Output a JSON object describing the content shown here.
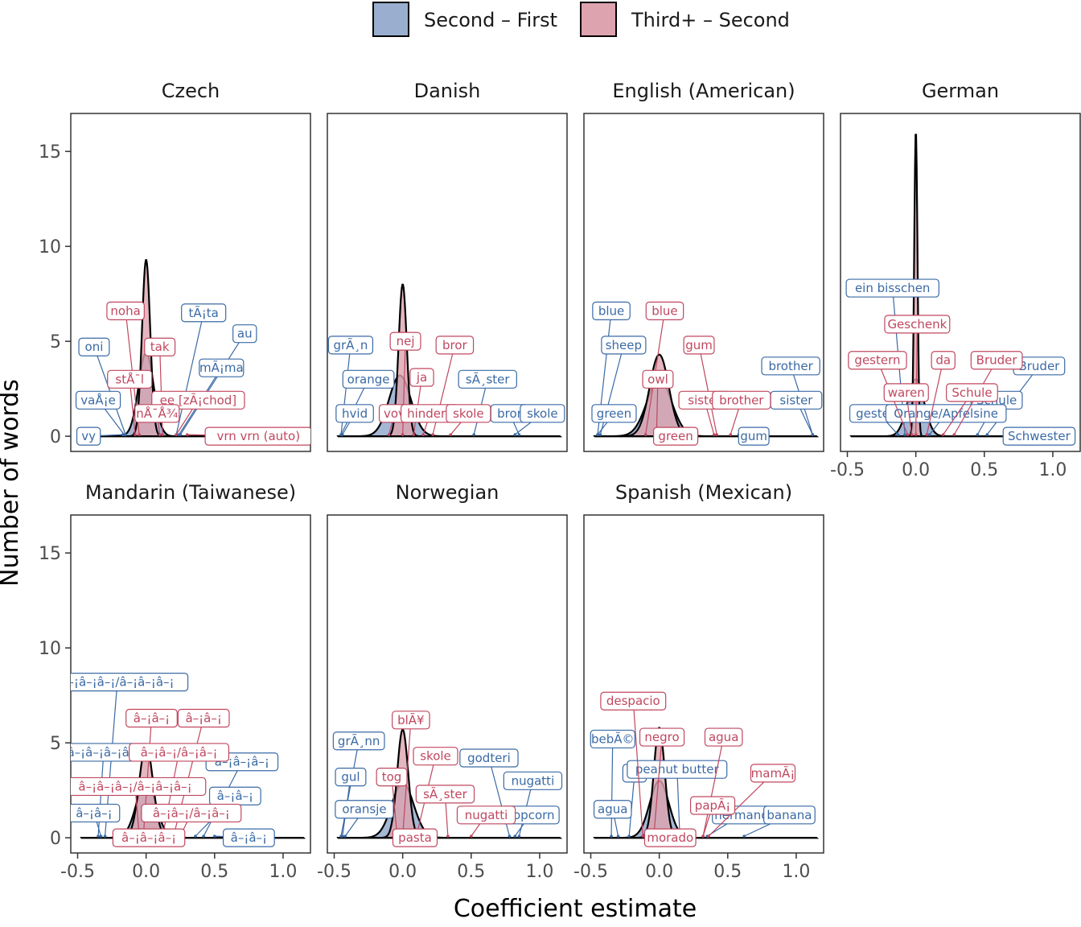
{
  "legend": {
    "items": [
      {
        "label": "Second – First",
        "color": "#9AAFCF"
      },
      {
        "label": "Third+ – Second",
        "color": "#DDA4AF"
      }
    ]
  },
  "colors": {
    "second_first_text": "#3A6AA5",
    "third_second_text": "#C0475F",
    "density_line": "#000000"
  },
  "chart_data": {
    "type": "area",
    "xlabel": "Coefficient estimate",
    "ylabel": "Number of words",
    "xlim": [
      -0.55,
      1.2
    ],
    "ylim": [
      -0.8,
      17
    ],
    "x_ticks": [
      "-0.5",
      "0.0",
      "0.5",
      "1.0"
    ],
    "x_tick_values": [
      -0.5,
      0,
      0.5,
      1.0
    ],
    "y_ticks": [
      "0",
      "5",
      "10",
      "15"
    ],
    "y_tick_values": [
      0,
      5,
      10,
      15
    ],
    "panels": [
      {
        "name": "Czech",
        "blue_peak": {
          "mu": 0.0,
          "sd": 0.055,
          "h": 4.4
        },
        "pink_peak": {
          "mu": 0.0,
          "sd": 0.03,
          "h": 9.3
        },
        "blue_labels": [
          {
            "text": "tÃ¡ta",
            "x": 0.42,
            "y": 6.5,
            "px": 0.22,
            "py": 0
          },
          {
            "text": "au",
            "x": 0.72,
            "y": 5.4,
            "px": 0.25,
            "py": 0
          },
          {
            "text": "oni",
            "x": -0.38,
            "y": 4.7,
            "px": -0.15,
            "py": 0
          },
          {
            "text": "mÃ¡ma",
            "x": 0.55,
            "y": 3.6,
            "px": 0.24,
            "py": 0
          },
          {
            "text": "vaÅ¡e",
            "x": -0.35,
            "y": 1.9,
            "px": -0.16,
            "py": 0
          },
          {
            "text": "vy",
            "x": -0.42,
            "y": 0,
            "px": -0.17,
            "py": 0
          }
        ],
        "pink_labels": [
          {
            "text": "noha",
            "x": -0.15,
            "y": 6.6,
            "px": -0.05,
            "py": 0
          },
          {
            "text": "tak",
            "x": 0.1,
            "y": 4.7,
            "px": 0.12,
            "py": 0
          },
          {
            "text": "stÅ¯l",
            "x": -0.12,
            "y": 3.0,
            "px": -0.08,
            "py": 0
          },
          {
            "text": "ee [zÃ¡chod]",
            "x": 0.38,
            "y": 1.9,
            "px": 0.22,
            "py": 0
          },
          {
            "text": "nÅ¯Å¾",
            "x": 0.08,
            "y": 1.2,
            "px": 0.1,
            "py": 0
          },
          {
            "text": "vrn vrn (auto)",
            "x": 0.82,
            "y": 0,
            "px": 0.3,
            "py": 0
          }
        ]
      },
      {
        "name": "Danish",
        "blue_peak": {
          "mu": -0.02,
          "sd": 0.08,
          "h": 3.2
        },
        "pink_peak": {
          "mu": 0.0,
          "sd": 0.03,
          "h": 8.0
        },
        "blue_labels": [
          {
            "text": "grÃ¸n",
            "x": -0.38,
            "y": 4.8,
            "px": -0.45,
            "py": 0
          },
          {
            "text": "orange",
            "x": -0.25,
            "y": 3.0,
            "px": -0.45,
            "py": 0
          },
          {
            "text": "sÃ¸ster",
            "x": 0.62,
            "y": 3.0,
            "px": 0.52,
            "py": 0
          },
          {
            "text": "hvid",
            "x": -0.35,
            "y": 1.2,
            "px": -0.44,
            "py": 0
          },
          {
            "text": "bror",
            "x": 0.78,
            "y": 1.2,
            "px": 0.85,
            "py": 0
          },
          {
            "text": "skole",
            "x": 1.02,
            "y": 1.2,
            "px": 0.82,
            "py": 0
          }
        ],
        "pink_labels": [
          {
            "text": "nej",
            "x": 0.02,
            "y": 5.0,
            "px": 0.0,
            "py": 0
          },
          {
            "text": "bror",
            "x": 0.38,
            "y": 4.8,
            "px": 0.22,
            "py": 0
          },
          {
            "text": "ja",
            "x": 0.14,
            "y": 3.1,
            "px": 0.08,
            "py": 0
          },
          {
            "text": "vov",
            "x": -0.06,
            "y": 1.2,
            "px": -0.1,
            "py": 0
          },
          {
            "text": "hindera",
            "x": 0.2,
            "y": 1.2,
            "px": 0.15,
            "py": 0
          },
          {
            "text": "skole",
            "x": 0.48,
            "y": 1.2,
            "px": 0.35,
            "py": 0
          }
        ]
      },
      {
        "name": "English (American)",
        "blue_peak": {
          "mu": 0.0,
          "sd": 0.09,
          "h": 3.0
        },
        "pink_peak": {
          "mu": 0.0,
          "sd": 0.07,
          "h": 4.3
        },
        "blue_labels": [
          {
            "text": "blue",
            "x": -0.35,
            "y": 6.6,
            "px": -0.45,
            "py": 0
          },
          {
            "text": "sheep",
            "x": -0.26,
            "y": 4.8,
            "px": -0.43,
            "py": 0
          },
          {
            "text": "brother",
            "x": 0.96,
            "y": 3.7,
            "px": 1.12,
            "py": 0
          },
          {
            "text": "green",
            "x": -0.33,
            "y": 1.2,
            "px": -0.45,
            "py": 0
          },
          {
            "text": "sister",
            "x": 1.0,
            "y": 1.9,
            "px": 1.12,
            "py": 0
          },
          {
            "text": "gum",
            "x": 0.69,
            "y": 0,
            "px": 0.58,
            "py": 0
          }
        ],
        "pink_labels": [
          {
            "text": "blue",
            "x": 0.04,
            "y": 6.6,
            "px": -0.1,
            "py": 0
          },
          {
            "text": "gum",
            "x": 0.29,
            "y": 4.8,
            "px": 0.42,
            "py": 0
          },
          {
            "text": "owl",
            "x": -0.01,
            "y": 3.0,
            "px": -0.02,
            "py": 0
          },
          {
            "text": "sister",
            "x": 0.33,
            "y": 1.9,
            "px": 0.4,
            "py": 0
          },
          {
            "text": "brother",
            "x": 0.6,
            "y": 1.9,
            "px": 0.52,
            "py": 0
          },
          {
            "text": "green",
            "x": 0.12,
            "y": 0,
            "px": 0.04,
            "py": 0
          }
        ]
      },
      {
        "name": "German",
        "blue_peak": {
          "mu": 0.0,
          "sd": 0.06,
          "h": 3.0
        },
        "pink_peak": {
          "mu": 0.0,
          "sd": 0.012,
          "h": 16.1
        },
        "blue_labels": [
          {
            "text": "ein bisschen",
            "x": -0.17,
            "y": 7.8,
            "px": -0.08,
            "py": 0
          },
          {
            "text": "Bruder",
            "x": 0.9,
            "y": 3.7,
            "px": 0.52,
            "py": 0
          },
          {
            "text": "Schule",
            "x": 0.59,
            "y": 1.9,
            "px": 0.45,
            "py": 0
          },
          {
            "text": "gestern",
            "x": -0.27,
            "y": 1.2,
            "px": -0.13,
            "py": 0
          },
          {
            "text": "Orange/Apfelsine",
            "x": 0.22,
            "y": 1.2,
            "px": 0.1,
            "py": 0
          },
          {
            "text": "Schwester",
            "x": 0.9,
            "y": 0,
            "px": 0.72,
            "py": 0
          }
        ],
        "pink_labels": [
          {
            "text": "Geschenk",
            "x": 0.01,
            "y": 5.9,
            "px": 0.0,
            "py": 0
          },
          {
            "text": "gestern",
            "x": -0.28,
            "y": 4.0,
            "px": -0.06,
            "py": 0
          },
          {
            "text": "da",
            "x": 0.2,
            "y": 4.0,
            "px": 0.08,
            "py": 0
          },
          {
            "text": "Bruder",
            "x": 0.59,
            "y": 4.0,
            "px": 0.28,
            "py": 0
          },
          {
            "text": "waren",
            "x": -0.07,
            "y": 2.3,
            "px": -0.03,
            "py": 0
          },
          {
            "text": "Schule",
            "x": 0.41,
            "y": 2.3,
            "px": 0.2,
            "py": 0
          }
        ]
      },
      {
        "name": "Mandarin (Taiwanese)",
        "blue_peak": {
          "mu": 0.0,
          "sd": 0.07,
          "h": 3.0
        },
        "pink_peak": {
          "mu": 0.0,
          "sd": 0.05,
          "h": 4.9
        },
        "blue_labels": [
          {
            "text": "â–¡â–¡â–¡/â–¡â–¡â–¡",
            "x": -0.21,
            "y": 8.2,
            "px": -0.3,
            "py": 0
          },
          {
            "text": "â–¡â–¡â–¡â–¡",
            "x": -0.31,
            "y": 4.5,
            "px": -0.35,
            "py": 0
          },
          {
            "text": "â–¡â–¡â–¡",
            "x": 0.7,
            "y": 4.0,
            "px": 0.42,
            "py": 0
          },
          {
            "text": "â–¡â–¡",
            "x": 0.65,
            "y": 2.2,
            "px": 0.36,
            "py": 0
          },
          {
            "text": "â–¡â–¡",
            "x": -0.38,
            "y": 1.3,
            "px": -0.33,
            "py": 0
          },
          {
            "text": "â–¡â–¡",
            "x": 0.75,
            "y": 0,
            "px": 0.5,
            "py": 0
          }
        ],
        "pink_labels": [
          {
            "text": "â–¡â–¡",
            "x": 0.04,
            "y": 6.3,
            "px": -0.02,
            "py": 0
          },
          {
            "text": "â–¡â–¡",
            "x": 0.42,
            "y": 6.3,
            "px": 0.2,
            "py": 0
          },
          {
            "text": "â–¡â–¡/â–¡â–¡",
            "x": 0.24,
            "y": 4.5,
            "px": 0.12,
            "py": 0
          },
          {
            "text": "â–¡â–¡â–¡/â–¡â–¡â–¡",
            "x": -0.08,
            "y": 2.7,
            "px": -0.05,
            "py": 0
          },
          {
            "text": "â–¡â–¡/â–¡â–¡",
            "x": 0.33,
            "y": 1.3,
            "px": 0.25,
            "py": 0
          },
          {
            "text": "â–¡â–¡â–¡",
            "x": 0.02,
            "y": 0,
            "px": 0.0,
            "py": 0
          }
        ]
      },
      {
        "name": "Norwegian",
        "blue_peak": {
          "mu": 0.0,
          "sd": 0.08,
          "h": 2.9
        },
        "pink_peak": {
          "mu": 0.0,
          "sd": 0.04,
          "h": 5.7
        },
        "blue_labels": [
          {
            "text": "grÃ¸nn",
            "x": -0.32,
            "y": 5.1,
            "px": -0.45,
            "py": 0
          },
          {
            "text": "godteri",
            "x": 0.63,
            "y": 4.2,
            "px": 0.78,
            "py": 0
          },
          {
            "text": "nugatti",
            "x": 0.95,
            "y": 3.0,
            "px": 0.85,
            "py": 0
          },
          {
            "text": "gul",
            "x": -0.38,
            "y": 3.2,
            "px": -0.44,
            "py": 0
          },
          {
            "text": "oransje",
            "x": -0.28,
            "y": 1.5,
            "px": -0.42,
            "py": 0
          },
          {
            "text": "popcorn",
            "x": 0.93,
            "y": 1.2,
            "px": 0.82,
            "py": 0
          }
        ],
        "pink_labels": [
          {
            "text": "blÃ¥",
            "x": 0.06,
            "y": 6.2,
            "px": 0.0,
            "py": 0
          },
          {
            "text": "skole",
            "x": 0.24,
            "y": 4.3,
            "px": 0.1,
            "py": 0
          },
          {
            "text": "tog",
            "x": -0.08,
            "y": 3.2,
            "px": -0.04,
            "py": 0
          },
          {
            "text": "sÃ¸ster",
            "x": 0.31,
            "y": 2.3,
            "px": 0.33,
            "py": 0
          },
          {
            "text": "nugatti",
            "x": 0.61,
            "y": 1.2,
            "px": 0.5,
            "py": 0
          },
          {
            "text": "pasta",
            "x": 0.09,
            "y": 0,
            "px": 0.05,
            "py": 0
          }
        ]
      },
      {
        "name": "Spanish (Mexican)",
        "blue_peak": {
          "mu": 0.0,
          "sd": 0.07,
          "h": 3.0
        },
        "pink_peak": {
          "mu": 0.0,
          "sd": 0.04,
          "h": 5.8
        },
        "blue_labels": [
          {
            "text": "bebÃ©",
            "x": -0.34,
            "y": 5.2,
            "px": -0.35,
            "py": 0
          },
          {
            "text": "si",
            "x": -0.18,
            "y": 3.4,
            "px": -0.22,
            "py": 0
          },
          {
            "text": "peanut butter",
            "x": 0.13,
            "y": 3.6,
            "px": 0.15,
            "py": 0
          },
          {
            "text": "agua",
            "x": -0.34,
            "y": 1.5,
            "px": -0.3,
            "py": 0
          },
          {
            "text": "hermano",
            "x": 0.6,
            "y": 1.2,
            "px": 0.35,
            "py": 0
          },
          {
            "text": "banana",
            "x": 0.95,
            "y": 1.2,
            "px": 0.62,
            "py": 0
          }
        ],
        "pink_labels": [
          {
            "text": "despacio",
            "x": -0.19,
            "y": 7.2,
            "px": -0.12,
            "py": 0
          },
          {
            "text": "negro",
            "x": 0.02,
            "y": 5.3,
            "px": -0.04,
            "py": 0
          },
          {
            "text": "agua",
            "x": 0.47,
            "y": 5.3,
            "px": 0.32,
            "py": 0
          },
          {
            "text": "mamÃ¡",
            "x": 0.83,
            "y": 3.4,
            "px": 0.36,
            "py": 0
          },
          {
            "text": "papÃ¡",
            "x": 0.39,
            "y": 1.7,
            "px": 0.32,
            "py": 0
          },
          {
            "text": "morado",
            "x": 0.08,
            "y": 0,
            "px": 0.05,
            "py": 0
          }
        ]
      }
    ]
  }
}
